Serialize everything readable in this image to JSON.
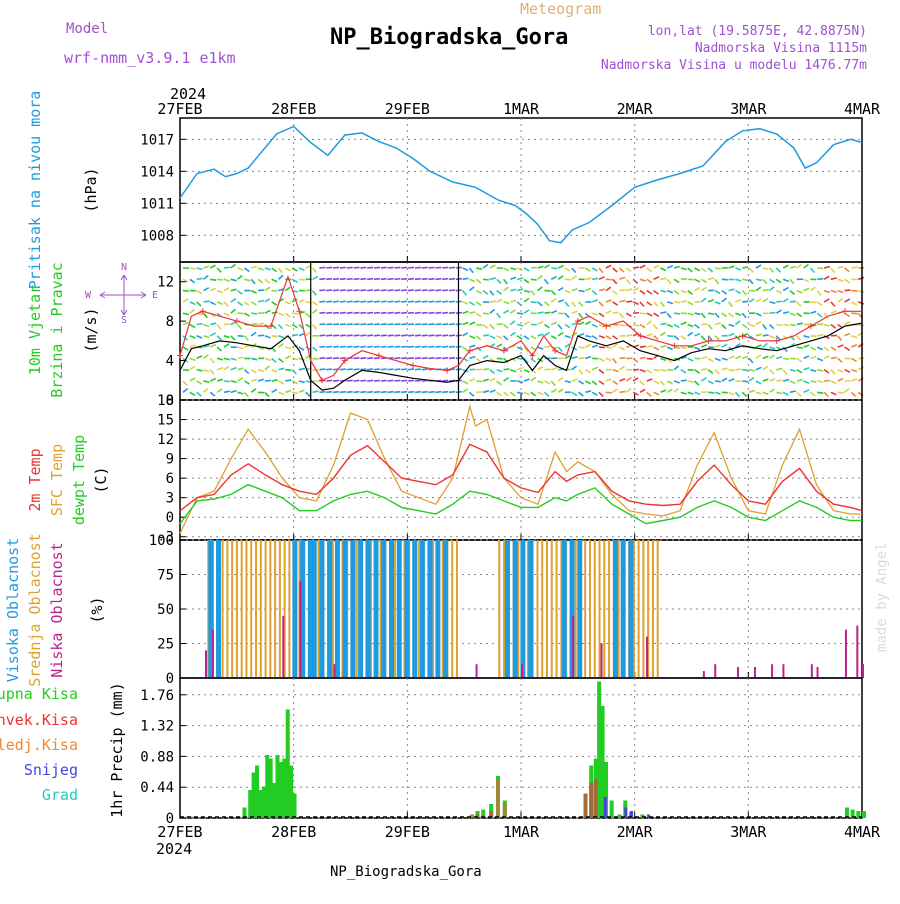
{
  "header": {
    "model_label": "Model",
    "model_name": "wrf-nmm_v3.9.1  e1km",
    "title": "NP_Biogradska_Gora",
    "meteogram_label": "Meteogram",
    "lonlat": "lon,lat (19.5875E, 42.8875N)",
    "elevation": "Nadmorska Visina 1115m",
    "model_elevation": "Nadmorska Visina u modelu 1476.77m",
    "footer_title": "NP_Biogradska_Gora",
    "watermark": "made by Angel",
    "year": "2024"
  },
  "colors": {
    "pressure": "#1e9be0",
    "t2m": "#ee3333",
    "sfc": "#e0a030",
    "dew": "#22cc22",
    "high_cloud": "#1e9be0",
    "mid_cloud": "#e0a030",
    "low_cloud": "#c0208a",
    "total_precip": "#22cc22",
    "conv_precip": "#ee3333",
    "frz_precip": "#ee8833",
    "snow": "#4444dd",
    "hail": "#22ccbb",
    "label_purple": "#a050d0"
  },
  "chart_data": [
    {
      "type": "line",
      "panel": "pressure",
      "ylabel_series": "Pritisak na nivou mora",
      "ylabel_unit": "(hPa)",
      "x_labels": [
        "27FEB",
        "28FEB",
        "29FEB",
        "1MAR",
        "2MAR",
        "3MAR",
        "4MAR"
      ],
      "x_days": [
        0,
        1,
        2,
        3,
        4,
        5,
        6
      ],
      "ylim": [
        1005.5,
        1019
      ],
      "yticks": [
        1008,
        1011,
        1014,
        1017
      ],
      "grid": true,
      "x": [
        0,
        0.15,
        0.3,
        0.4,
        0.5,
        0.6,
        0.7,
        0.85,
        1.0,
        1.15,
        1.3,
        1.45,
        1.6,
        1.75,
        1.9,
        2.05,
        2.2,
        2.4,
        2.6,
        2.8,
        2.95,
        3.05,
        3.15,
        3.25,
        3.35,
        3.45,
        3.6,
        3.8,
        4.0,
        4.2,
        4.4,
        4.6,
        4.8,
        4.95,
        5.1,
        5.25,
        5.4,
        5.5,
        5.6,
        5.75,
        5.9,
        6.0
      ],
      "values": [
        1011.5,
        1013.8,
        1014.2,
        1013.5,
        1013.8,
        1014.3,
        1015.6,
        1017.5,
        1018.2,
        1016.7,
        1015.5,
        1017.4,
        1017.6,
        1016.8,
        1016.2,
        1015.2,
        1014.0,
        1013.0,
        1012.5,
        1011.3,
        1010.8,
        1010.0,
        1009.0,
        1007.5,
        1007.3,
        1008.5,
        1009.2,
        1010.8,
        1012.5,
        1013.2,
        1013.8,
        1014.5,
        1016.8,
        1017.8,
        1018.0,
        1017.5,
        1016.2,
        1014.3,
        1014.8,
        1016.5,
        1017.0,
        1016.7
      ]
    },
    {
      "type": "line",
      "panel": "wind",
      "ylabel_series_1": "10m Vjetar",
      "ylabel_series_2": "Brzina i Pravac",
      "ylabel_unit": "(m/s)",
      "compass_n": "N",
      "compass_s": "S",
      "compass_w": "W",
      "compass_e": "E",
      "ylim": [
        0,
        14
      ],
      "yticks": [
        0,
        4,
        8,
        12
      ],
      "shaded_band": [
        1.15,
        2.45
      ],
      "series": [
        {
          "name": "speed",
          "x": [
            0,
            0.1,
            0.2,
            0.35,
            0.5,
            0.65,
            0.8,
            0.95,
            1.05,
            1.15,
            1.25,
            1.35,
            1.45,
            1.6,
            1.75,
            1.9,
            2.05,
            2.2,
            2.35,
            2.45,
            2.55,
            2.7,
            2.85,
            3.0,
            3.1,
            3.2,
            3.3,
            3.4,
            3.5,
            3.6,
            3.75,
            3.9,
            4.05,
            4.2,
            4.35,
            4.5,
            4.65,
            4.8,
            4.95,
            5.1,
            5.25,
            5.4,
            5.55,
            5.7,
            5.85,
            6.0
          ],
          "values": [
            3.0,
            5.2,
            5.5,
            6.0,
            5.8,
            5.5,
            5.2,
            6.5,
            5.0,
            2.0,
            1.0,
            1.2,
            2.0,
            3.0,
            2.8,
            2.5,
            2.2,
            2.0,
            1.8,
            2.0,
            3.5,
            4.0,
            3.8,
            4.5,
            3.0,
            4.5,
            3.5,
            3.0,
            6.5,
            6.0,
            5.5,
            6.0,
            5.0,
            4.5,
            4.0,
            4.8,
            5.2,
            5.0,
            5.5,
            5.2,
            5.0,
            5.5,
            6.0,
            6.5,
            7.5,
            7.8
          ]
        },
        {
          "name": "gust",
          "x": [
            0,
            0.1,
            0.2,
            0.35,
            0.5,
            0.65,
            0.8,
            0.95,
            1.05,
            1.15,
            1.25,
            1.35,
            1.45,
            1.6,
            1.75,
            1.9,
            2.05,
            2.2,
            2.35,
            2.45,
            2.55,
            2.7,
            2.85,
            3.0,
            3.1,
            3.2,
            3.3,
            3.4,
            3.5,
            3.6,
            3.75,
            3.9,
            4.05,
            4.2,
            4.35,
            4.5,
            4.65,
            4.8,
            4.95,
            5.1,
            5.25,
            5.4,
            5.55,
            5.7,
            5.85,
            6.0
          ],
          "values": [
            4.5,
            8.5,
            9.0,
            8.5,
            8.0,
            7.5,
            7.5,
            12.5,
            9.0,
            4.0,
            2.0,
            2.5,
            4.0,
            5.0,
            4.5,
            4.0,
            3.5,
            3.2,
            3.0,
            3.5,
            5.0,
            5.5,
            5.0,
            6.0,
            4.5,
            6.5,
            5.0,
            4.5,
            8.0,
            8.5,
            7.5,
            8.0,
            6.5,
            6.0,
            5.5,
            5.5,
            6.0,
            6.0,
            6.5,
            6.0,
            6.0,
            6.5,
            7.5,
            8.5,
            9.0,
            9.0
          ]
        }
      ]
    },
    {
      "type": "line",
      "panel": "temperature",
      "ylabel_series_1": "2m Temp",
      "ylabel_series_2": "SFC Temp",
      "ylabel_series_3": "dewpt Temp",
      "ylabel_unit": "(C)",
      "ylim": [
        -3.5,
        18
      ],
      "yticks": [
        -3,
        0,
        3,
        6,
        9,
        12,
        15,
        18
      ],
      "series": [
        {
          "name": "2m Temp",
          "x": [
            0,
            0.15,
            0.3,
            0.45,
            0.6,
            0.75,
            0.9,
            1.05,
            1.2,
            1.35,
            1.5,
            1.65,
            1.8,
            1.95,
            2.1,
            2.25,
            2.4,
            2.55,
            2.7,
            2.85,
            3.0,
            3.15,
            3.3,
            3.4,
            3.5,
            3.65,
            3.8,
            3.95,
            4.1,
            4.25,
            4.4,
            4.55,
            4.7,
            4.85,
            5.0,
            5.15,
            5.3,
            5.45,
            5.6,
            5.75,
            5.9,
            6.0
          ],
          "values": [
            1.0,
            3.0,
            3.5,
            6.5,
            8.2,
            6.5,
            5.0,
            4.0,
            3.5,
            6.0,
            9.5,
            11.0,
            8.5,
            6.0,
            5.5,
            5.0,
            6.5,
            11.2,
            10.0,
            6.0,
            4.5,
            3.8,
            7.0,
            5.5,
            6.5,
            7.0,
            4.0,
            2.5,
            2.0,
            1.8,
            2.0,
            5.5,
            8.0,
            5.0,
            2.5,
            2.0,
            5.5,
            7.5,
            4.0,
            2.0,
            1.5,
            1.0
          ]
        },
        {
          "name": "SFC Temp",
          "x": [
            0,
            0.15,
            0.3,
            0.45,
            0.6,
            0.75,
            0.9,
            1.05,
            1.2,
            1.35,
            1.5,
            1.65,
            1.8,
            1.95,
            2.1,
            2.25,
            2.4,
            2.55,
            2.6,
            2.7,
            2.85,
            3.0,
            3.15,
            3.3,
            3.4,
            3.5,
            3.65,
            3.8,
            3.95,
            4.1,
            4.25,
            4.4,
            4.55,
            4.7,
            4.85,
            5.0,
            5.15,
            5.3,
            5.45,
            5.6,
            5.75,
            5.9,
            6.0
          ],
          "values": [
            -2.5,
            3.0,
            4.0,
            9.0,
            13.5,
            10.0,
            6.0,
            3.0,
            2.5,
            8.0,
            16.0,
            15.0,
            9.0,
            4.0,
            3.0,
            2.0,
            6.0,
            17.0,
            14.0,
            15.0,
            6.0,
            3.0,
            2.0,
            10.0,
            7.0,
            8.5,
            7.0,
            3.5,
            1.0,
            0.5,
            0.2,
            1.0,
            8.0,
            13.0,
            6.0,
            1.0,
            0.5,
            8.0,
            13.5,
            5.0,
            1.0,
            0.5,
            0.5
          ]
        },
        {
          "name": "dewpt Temp",
          "x": [
            0,
            0.15,
            0.3,
            0.45,
            0.6,
            0.75,
            0.9,
            1.05,
            1.2,
            1.35,
            1.5,
            1.65,
            1.8,
            1.95,
            2.1,
            2.25,
            2.4,
            2.55,
            2.7,
            2.85,
            3.0,
            3.15,
            3.3,
            3.4,
            3.5,
            3.65,
            3.8,
            3.95,
            4.1,
            4.25,
            4.4,
            4.55,
            4.7,
            4.85,
            5.0,
            5.15,
            5.3,
            5.45,
            5.6,
            5.75,
            5.9,
            6.0
          ],
          "values": [
            -1.0,
            2.5,
            2.8,
            3.5,
            5.0,
            4.0,
            3.0,
            1.0,
            1.0,
            2.5,
            3.5,
            4.0,
            3.0,
            1.5,
            1.0,
            0.5,
            2.0,
            4.0,
            3.5,
            2.5,
            1.5,
            1.5,
            3.0,
            2.5,
            3.5,
            4.5,
            2.0,
            0.5,
            -1.0,
            -0.5,
            0.0,
            1.5,
            2.5,
            1.5,
            0.0,
            -0.5,
            1.0,
            2.5,
            1.5,
            0.0,
            -0.5,
            -0.5
          ]
        }
      ]
    },
    {
      "type": "bar",
      "panel": "clouds",
      "ylabel_series_1": "Visoka Oblacnost",
      "ylabel_series_2": "Srednja Oblacnost",
      "ylabel_series_3": "Niska Oblacnost",
      "ylabel_unit": "(%)",
      "ylim": [
        0,
        100
      ],
      "yticks": [
        0,
        25,
        50,
        75,
        100
      ],
      "high": [
        [
          0.24,
          0.31,
          100
        ],
        [
          0.98,
          1.12,
          100
        ],
        [
          1.15,
          2.35,
          100
        ],
        [
          2.85,
          3.1,
          100
        ],
        [
          3.35,
          3.55,
          100
        ],
        [
          3.8,
          3.95,
          100
        ]
      ],
      "mid": [
        [
          0.24,
          1.0,
          100
        ],
        [
          1.0,
          2.45,
          100
        ],
        [
          2.8,
          3.9,
          100
        ],
        [
          3.9,
          4.2,
          100
        ]
      ],
      "low": [
        [
          0.22,
          20
        ],
        [
          0.28,
          35
        ],
        [
          0.9,
          45
        ],
        [
          1.05,
          70
        ],
        [
          1.35,
          10
        ],
        [
          2.6,
          10
        ],
        [
          3.0,
          10
        ],
        [
          3.45,
          45
        ],
        [
          3.7,
          25
        ],
        [
          4.1,
          30
        ],
        [
          4.6,
          5
        ],
        [
          4.7,
          10
        ],
        [
          4.9,
          8
        ],
        [
          5.05,
          8
        ],
        [
          5.2,
          10
        ],
        [
          5.3,
          10
        ],
        [
          5.55,
          10
        ],
        [
          5.6,
          8
        ],
        [
          5.85,
          35
        ],
        [
          5.95,
          38
        ],
        [
          6.0,
          10
        ]
      ]
    },
    {
      "type": "bar",
      "panel": "precip",
      "legend": [
        "Ukupna Kisa",
        "Konvek.Kisa",
        "Zaledj.Kisa",
        "Snijeg",
        "Grad"
      ],
      "ylabel": "1hr Precip (mm)",
      "ylim": [
        0,
        2.0
      ],
      "yticks": [
        0,
        0.44,
        0.88,
        1.32,
        1.76
      ],
      "total": [
        [
          0.05,
          0.02
        ],
        [
          0.08,
          0.02
        ],
        [
          0.55,
          0.15
        ],
        [
          0.6,
          0.4
        ],
        [
          0.63,
          0.65
        ],
        [
          0.66,
          0.75
        ],
        [
          0.69,
          0.4
        ],
        [
          0.72,
          0.45
        ],
        [
          0.75,
          0.9
        ],
        [
          0.78,
          0.85
        ],
        [
          0.81,
          0.5
        ],
        [
          0.84,
          0.9
        ],
        [
          0.87,
          0.8
        ],
        [
          0.9,
          0.85
        ],
        [
          0.93,
          1.55
        ],
        [
          0.96,
          0.75
        ],
        [
          0.99,
          0.35
        ],
        [
          2.55,
          0.05
        ],
        [
          2.6,
          0.1
        ],
        [
          2.65,
          0.12
        ],
        [
          2.72,
          0.2
        ],
        [
          2.78,
          0.6
        ],
        [
          2.84,
          0.25
        ],
        [
          3.55,
          0.3
        ],
        [
          3.6,
          0.75
        ],
        [
          3.64,
          0.85
        ],
        [
          3.67,
          1.95
        ],
        [
          3.7,
          1.6
        ],
        [
          3.73,
          0.8
        ],
        [
          3.78,
          0.25
        ],
        [
          3.85,
          0.05
        ],
        [
          3.9,
          0.25
        ],
        [
          3.95,
          0.08
        ],
        [
          4.05,
          0.05
        ],
        [
          5.85,
          0.15
        ],
        [
          5.9,
          0.12
        ],
        [
          5.95,
          0.1
        ],
        [
          6.0,
          0.1
        ]
      ],
      "convective": [
        [
          2.6,
          0.05
        ],
        [
          2.72,
          0.1
        ],
        [
          3.55,
          0.35
        ],
        [
          3.6,
          0.5
        ],
        [
          3.64,
          0.55
        ]
      ],
      "frozen": [
        [
          2.55,
          0.05
        ],
        [
          2.65,
          0.05
        ],
        [
          2.78,
          0.55
        ],
        [
          2.84,
          0.2
        ]
      ],
      "snow": [
        [
          3.9,
          0.15
        ],
        [
          3.95,
          0.1
        ],
        [
          4.1,
          0.05
        ],
        [
          3.72,
          0.3
        ]
      ]
    }
  ]
}
